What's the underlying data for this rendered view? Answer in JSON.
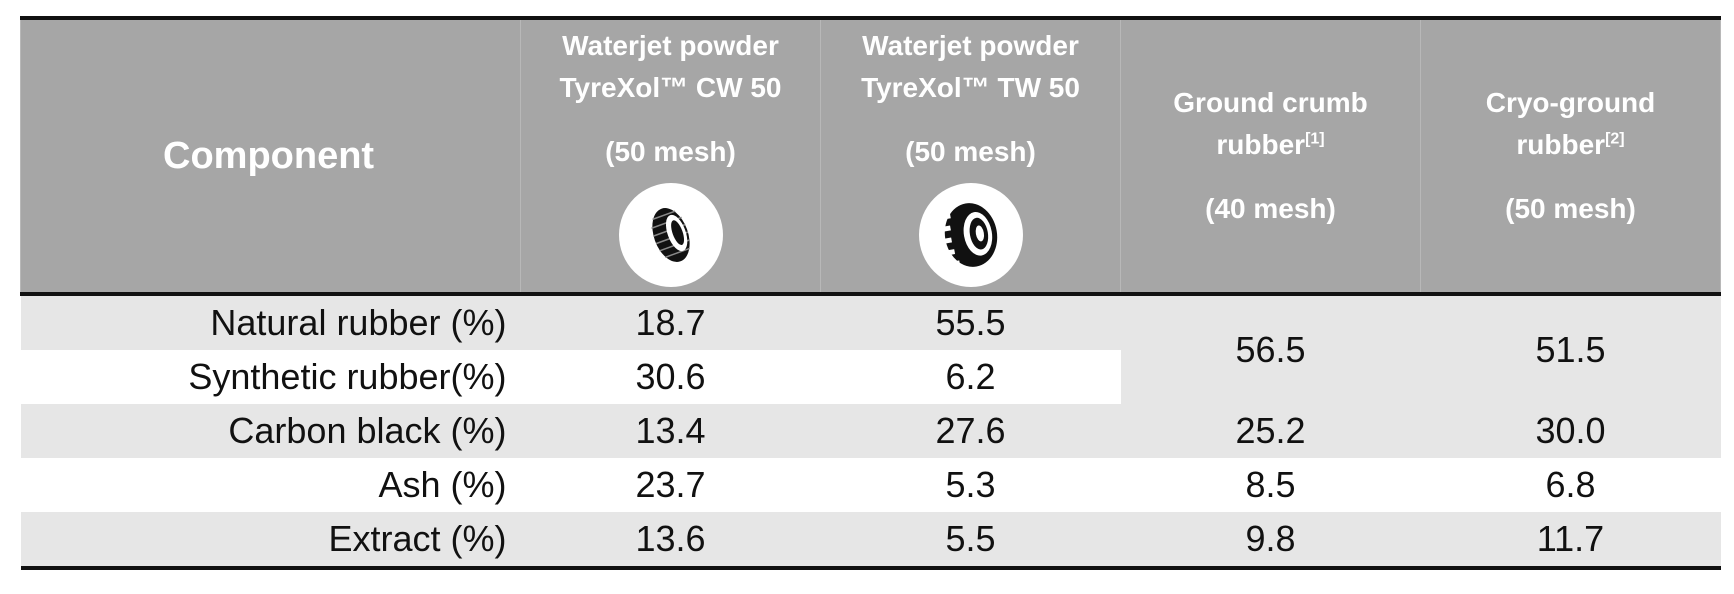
{
  "header": {
    "component": "Component",
    "columns": [
      {
        "line1": "Waterjet powder",
        "line2": "TyreXol™ CW 50",
        "mesh": "(50 mesh)",
        "icon": "narrow-tyre-icon"
      },
      {
        "line1": "Waterjet powder",
        "line2": "TyreXol™ TW 50",
        "mesh": "(50 mesh)",
        "icon": "truck-tyre-icon"
      },
      {
        "line1": "Ground crumb",
        "line2": "rubber",
        "ref": "[1]",
        "mesh": "(40 mesh)"
      },
      {
        "line1": "Cryo-ground",
        "line2": "rubber",
        "ref": "[2]",
        "mesh": "(50 mesh)"
      }
    ]
  },
  "rows": [
    {
      "label": "Natural rubber (%)",
      "cw": "18.7",
      "tw": "55.5",
      "ground": "56.5",
      "cryo": "51.5"
    },
    {
      "label": "Synthetic rubber(%)",
      "cw": "30.6",
      "tw": "6.2"
    },
    {
      "label": "Carbon black (%)",
      "cw": "13.4",
      "tw": "27.6",
      "ground": "25.2",
      "cryo": "30.0"
    },
    {
      "label": "Ash (%)",
      "cw": "23.7",
      "tw": "5.3",
      "ground": "8.5",
      "cryo": "6.8"
    },
    {
      "label": "Extract (%)",
      "cw": "13.6",
      "tw": "5.5",
      "ground": "9.8",
      "cryo": "11.7"
    }
  ],
  "colors": {
    "header_bg": "#a6a6a6",
    "row_shade": "#e6e6e6",
    "rule": "#111111"
  }
}
